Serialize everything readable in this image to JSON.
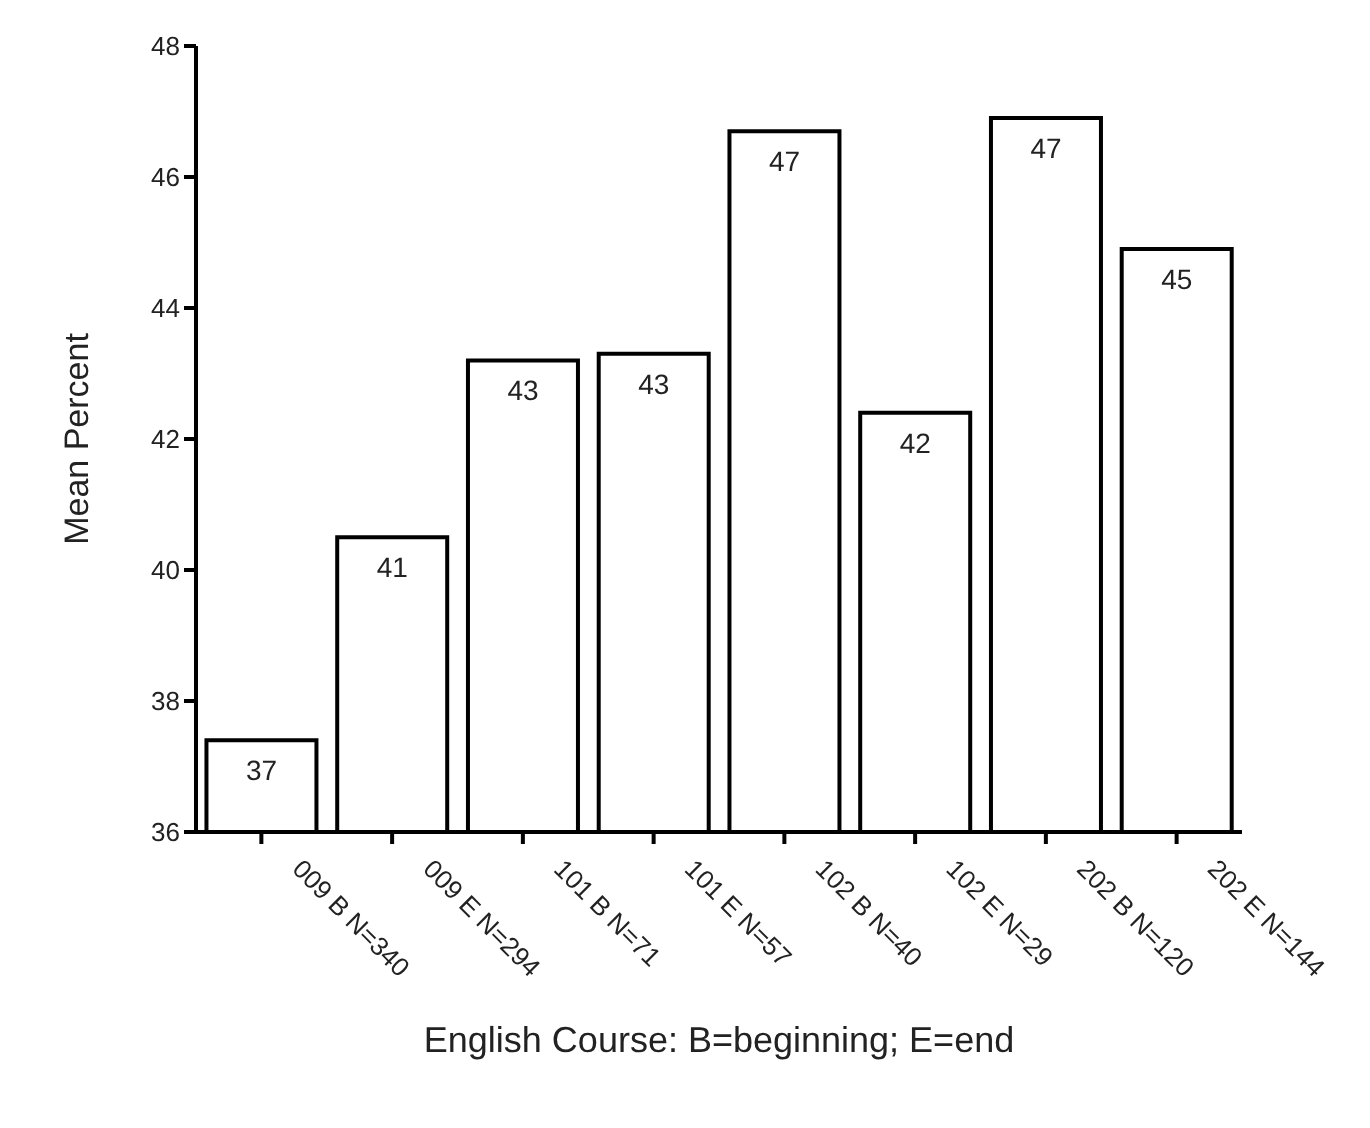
{
  "chart_data": {
    "type": "bar",
    "xlabel": "English Course: B=beginning; E=end",
    "ylabel": "Mean Percent",
    "categories": [
      "009 B N=340",
      "009 E N=294",
      "101 B N=71",
      "101 E N=57",
      "102 B N=40",
      "102 E N=29",
      "202 B N=120",
      "202 E N=144"
    ],
    "values": [
      37.4,
      40.5,
      43.2,
      43.3,
      46.7,
      42.4,
      46.9,
      44.9
    ],
    "value_labels": [
      "37",
      "41",
      "43",
      "43",
      "47",
      "42",
      "47",
      "45"
    ],
    "color": "#ffffff",
    "ylim": [
      36,
      48
    ],
    "yticks": [
      36,
      38,
      40,
      42,
      44,
      46,
      48
    ],
    "grid": false,
    "legend": false
  }
}
